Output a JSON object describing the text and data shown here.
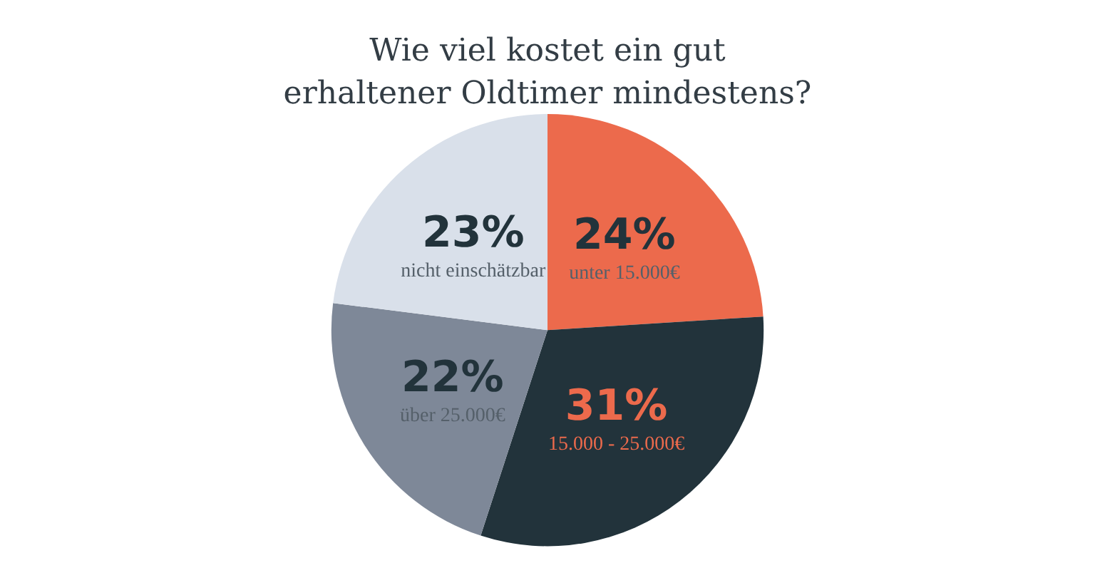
{
  "chart_data": {
    "type": "pie",
    "title": "Wie viel kostet ein gut\nerhaltener Oldtimer mindestens?",
    "categories": [
      "unter 15.000€",
      "15.000 - 25.000€",
      "über 25.000€",
      "nicht einschätzbar"
    ],
    "values": [
      24,
      31,
      22,
      23
    ],
    "value_labels": [
      "24%",
      "31%",
      "22%",
      "23%"
    ],
    "colors": [
      "#ec6a4c",
      "#22333b",
      "#7e8898",
      "#d9e0ea"
    ],
    "legend": false
  }
}
